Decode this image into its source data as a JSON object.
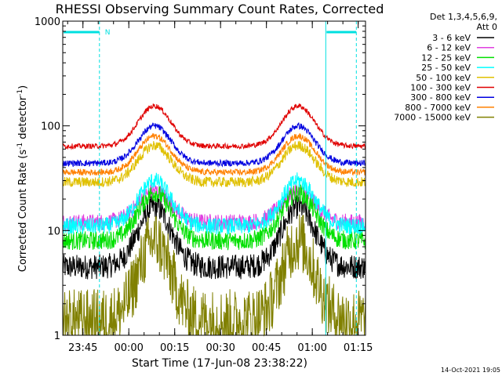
{
  "chart_data": {
    "type": "line",
    "title": "RHESSI Observing Summary Count Rates, Corrected",
    "xlabel": "Start Time (17-Jun-08 23:38:22)",
    "ylabel_parts": [
      "Corrected Count Rate (s",
      "-1",
      " detector",
      "-1",
      ")"
    ],
    "yscale": "log",
    "ylim": [
      1,
      1000
    ],
    "xlim_minutes_after_23_38_22": [
      0,
      99
    ],
    "x_ticks": [
      {
        "label": "23:45",
        "minute": 6.6
      },
      {
        "label": "00:00",
        "minute": 21.6
      },
      {
        "label": "00:15",
        "minute": 36.6
      },
      {
        "label": "00:30",
        "minute": 51.6
      },
      {
        "label": "00:45",
        "minute": 66.6
      },
      {
        "label": "01:00",
        "minute": 81.6
      },
      {
        "label": "01:15",
        "minute": 96.6
      }
    ],
    "y_ticks": [
      {
        "label": "1",
        "value": 1
      },
      {
        "label": "10",
        "value": 10
      },
      {
        "label": "100",
        "value": 100
      },
      {
        "label": "1000",
        "value": 1000
      }
    ],
    "legend_header": [
      "Det 1,3,4,5,6,9,",
      "Att 0"
    ],
    "legend_position": "right",
    "series": [
      {
        "name": "3 - 6 keV",
        "color": "#000000",
        "base": 4.5,
        "peak": 17,
        "noise": 0.12
      },
      {
        "name": "6 - 12 keV",
        "color": "#e040e0",
        "base": 12,
        "peak": 24,
        "noise": 0.08
      },
      {
        "name": "12 - 25 keV",
        "color": "#00e000",
        "base": 8,
        "peak": 23,
        "noise": 0.09
      },
      {
        "name": "25 - 50 keV",
        "color": "#00ffff",
        "base": 11,
        "peak": 30,
        "noise": 0.08
      },
      {
        "name": "50 - 100 keV",
        "color": "#e0c000",
        "base": 29,
        "peak": 65,
        "noise": 0.05
      },
      {
        "name": "100 - 300 keV",
        "color": "#e00000",
        "base": 64,
        "peak": 155,
        "noise": 0.025
      },
      {
        "name": "300 - 800 keV",
        "color": "#0000e0",
        "base": 44,
        "peak": 100,
        "noise": 0.03
      },
      {
        "name": "800 - 7000 keV",
        "color": "#ff8000",
        "base": 36,
        "peak": 80,
        "noise": 0.03
      },
      {
        "name": "7000 - 15000 keV",
        "color": "#808000",
        "base": 1.4,
        "peak": 8,
        "noise": 0.3
      }
    ],
    "peaks_minutes": [
      30,
      77
    ],
    "night_segments_minutes": [
      [
        0,
        12
      ],
      [
        86,
        96
      ]
    ],
    "night_marker_label": "N"
  },
  "footer": {
    "date": "14-Oct-2021 19:05"
  }
}
